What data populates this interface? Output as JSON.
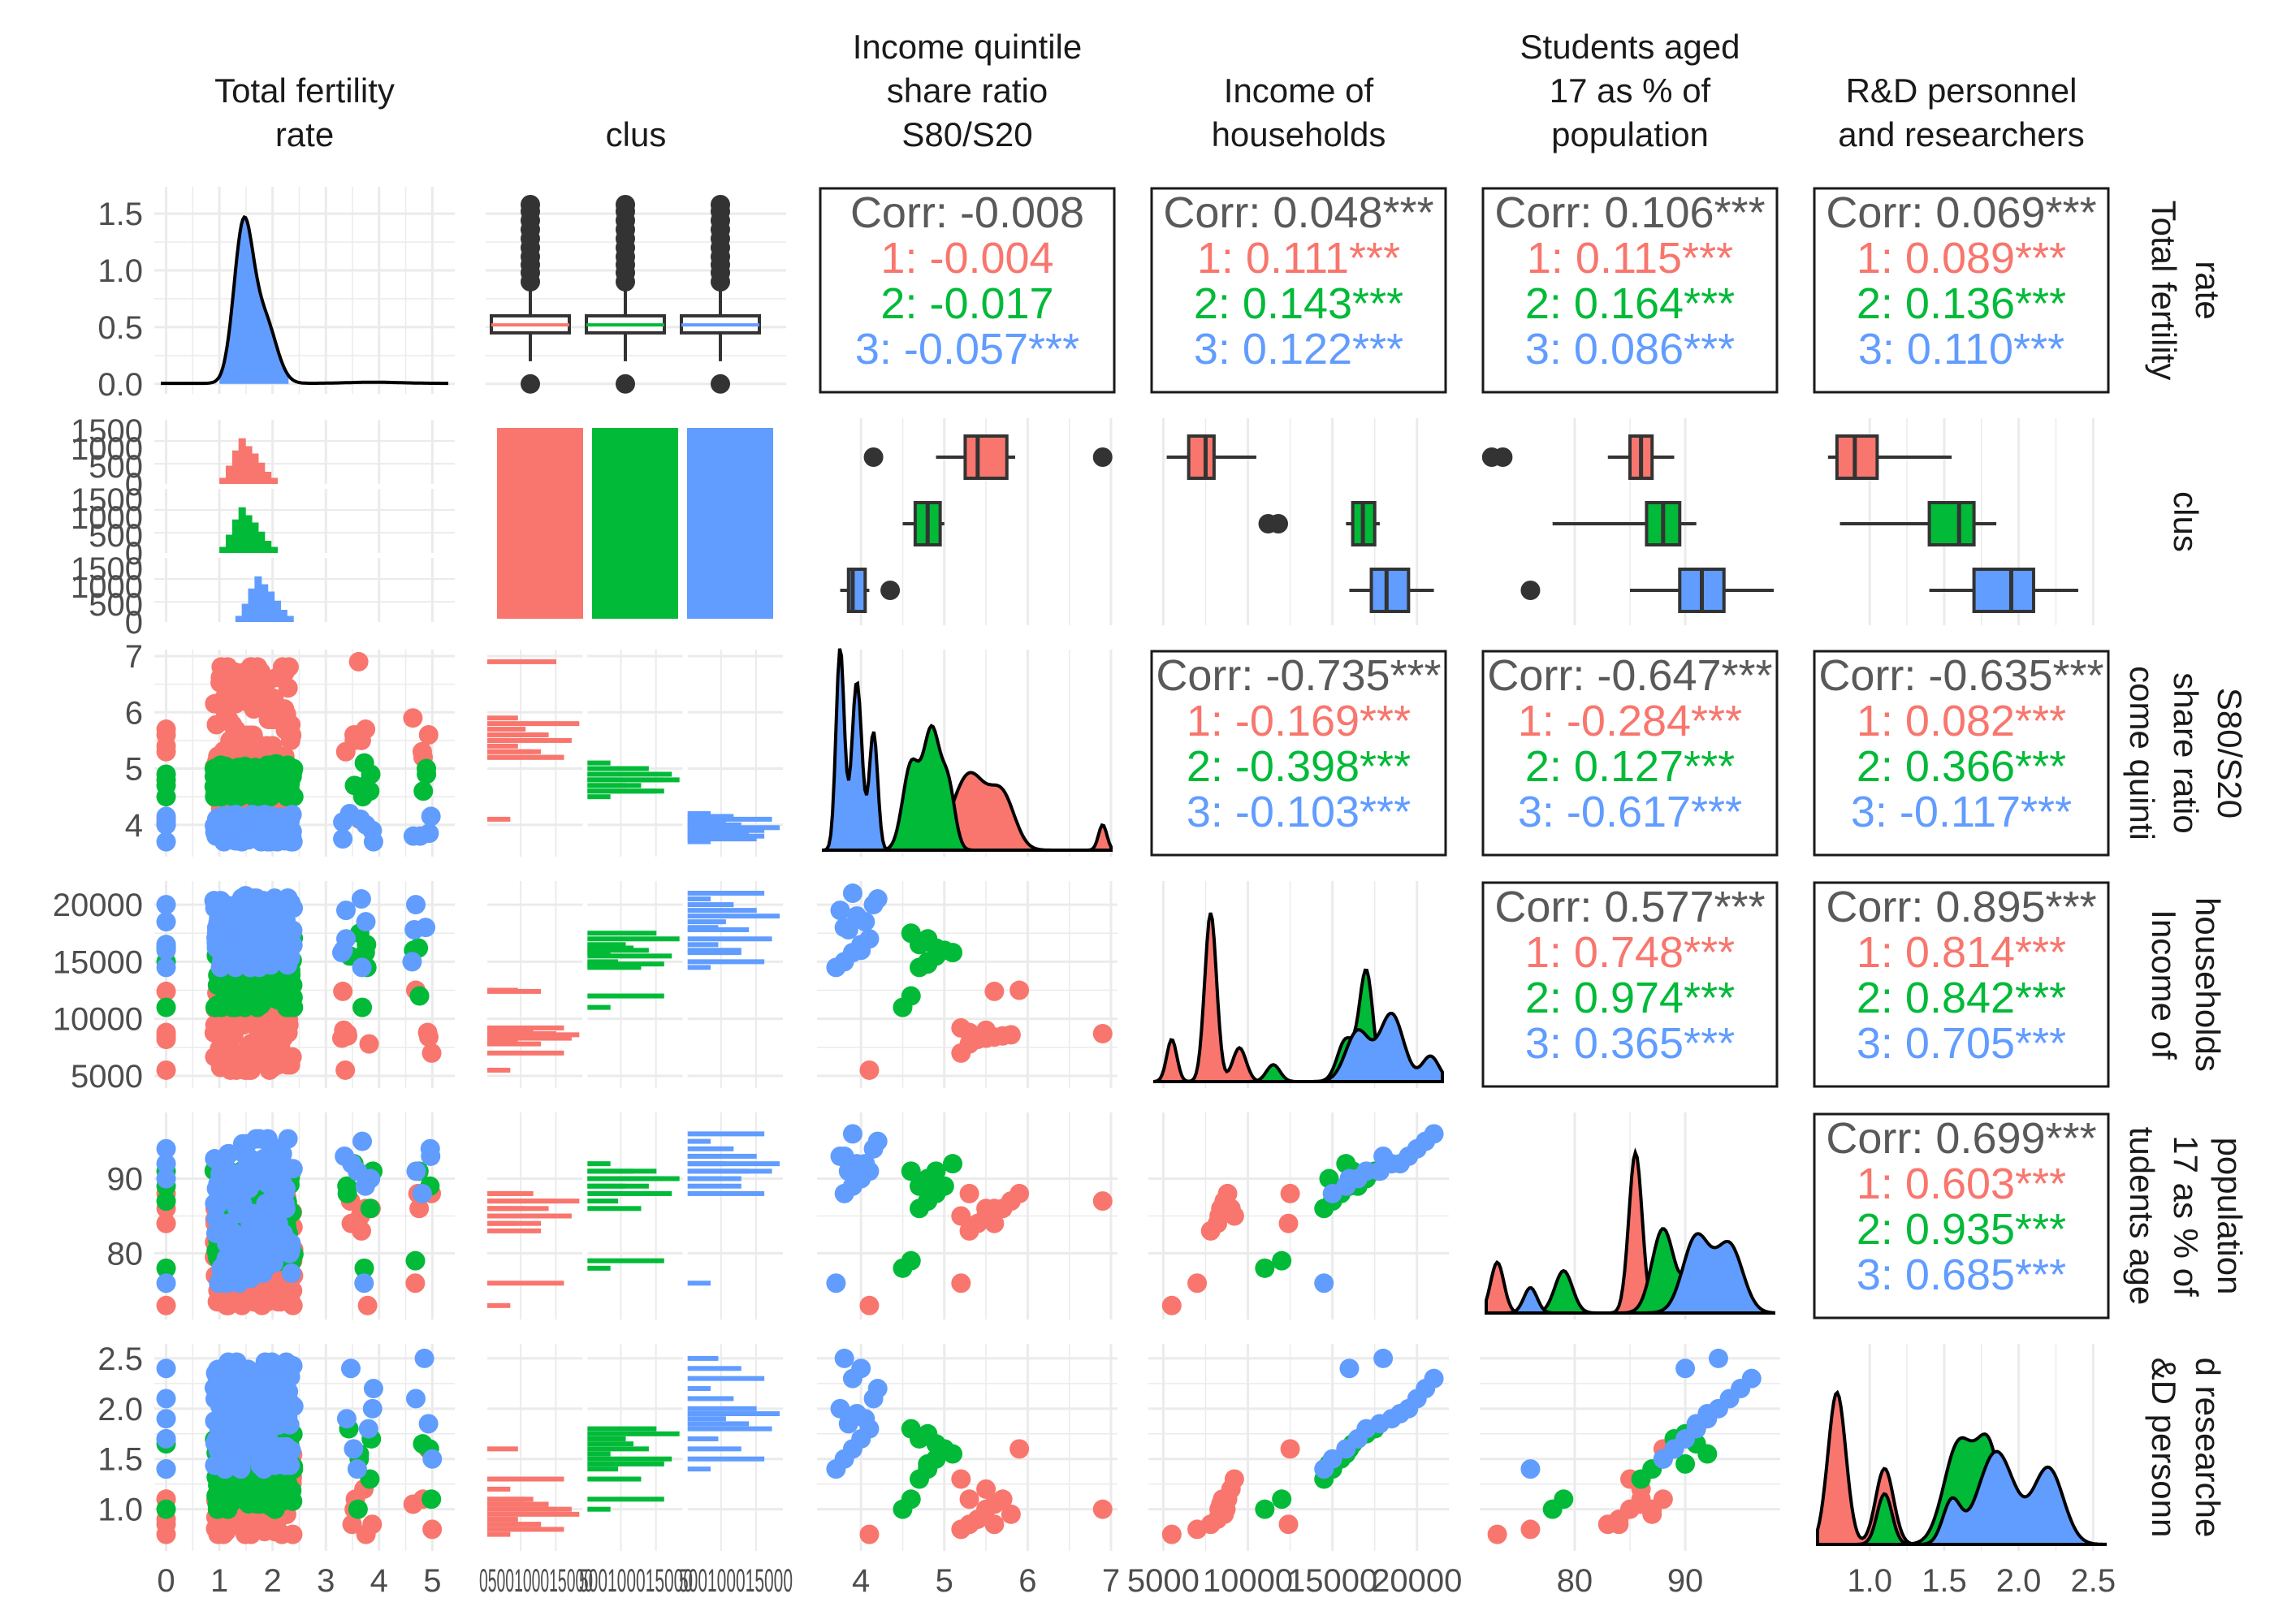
{
  "chart_data": {
    "type": "scatter-matrix",
    "variables": [
      "Total fertility rate",
      "clus",
      "Income quintile share ratio S80/S20",
      "Income of households",
      "Students aged 17 as % of population",
      "R&D personnel and researchers"
    ],
    "column_headers": [
      [
        "Total fertility",
        "rate"
      ],
      [
        "clus"
      ],
      [
        "Income quintile",
        "share ratio",
        "S80/S20"
      ],
      [
        "Income of",
        "households"
      ],
      [
        "Students aged",
        "17 as % of",
        "population"
      ],
      [
        "R&D personnel",
        "and researchers"
      ]
    ],
    "row_strips": [
      [
        "Total fertility",
        "rate"
      ],
      [
        "clus"
      ],
      [
        "come quinti",
        "share ratio",
        "S80/S20"
      ],
      [
        "Income of",
        "households"
      ],
      [
        "tudents age",
        "17 as % of",
        "population"
      ],
      [
        "&D personn",
        "d researche"
      ]
    ],
    "clusters": [
      "1",
      "2",
      "3"
    ],
    "colors": {
      "1": "#F8766D",
      "2": "#00BA38",
      "3": "#619CFF",
      "overall": "#595959",
      "grid": "#EBEBEB"
    },
    "axes": {
      "tfr": {
        "range": [
          -0.1,
          5.3
        ],
        "ticks": [
          "0",
          "1",
          "2",
          "3",
          "4",
          "5"
        ],
        "tickvals": [
          0,
          1,
          2,
          3,
          4,
          5
        ]
      },
      "tfr_density_y": {
        "range": [
          -0.03,
          1.68
        ],
        "ticks": [
          "0.0",
          "0.5",
          "1.0",
          "1.5"
        ],
        "tickvals": [
          0,
          0.5,
          1,
          1.5
        ]
      },
      "clus_x_labels": [
        "0500100015000",
        "500100015000",
        "500100015000"
      ],
      "clus_y_labels": [
        "1500",
        "1000",
        "500",
        "0"
      ],
      "s80": {
        "range": [
          3.55,
          7.0
        ],
        "ticks": [
          "4",
          "5",
          "6",
          "7"
        ],
        "tickvals": [
          4,
          5,
          6,
          7
        ]
      },
      "income": {
        "range": [
          4500,
          21500
        ],
        "ticks": [
          "5000",
          "10000",
          "15000",
          "20000"
        ],
        "tickvals": [
          5000,
          10000,
          15000,
          20000
        ]
      },
      "students": {
        "range": [
          72,
          98
        ],
        "ticks": [
          "80",
          "90"
        ],
        "tickvals": [
          80,
          90
        ]
      },
      "rd": {
        "range": [
          0.65,
          2.58
        ],
        "ticks": [
          "1.0",
          "1.5",
          "2.0",
          "2.5"
        ],
        "tickvals": [
          1,
          1.5,
          2,
          2.5
        ]
      }
    },
    "correlations": [
      {
        "row": 0,
        "col": 2,
        "overall": "Corr: -0.008",
        "c1": "1: -0.004",
        "c2": "2: -0.017",
        "c3": "3: -0.057***"
      },
      {
        "row": 0,
        "col": 3,
        "overall": "Corr: 0.048***",
        "c1": "1: 0.111***",
        "c2": "2: 0.143***",
        "c3": "3: 0.122***"
      },
      {
        "row": 0,
        "col": 4,
        "overall": "Corr: 0.106***",
        "c1": "1: 0.115***",
        "c2": "2: 0.164***",
        "c3": "3: 0.086***"
      },
      {
        "row": 0,
        "col": 5,
        "overall": "Corr: 0.069***",
        "c1": "1: 0.089***",
        "c2": "2: 0.136***",
        "c3": "3: 0.110***"
      },
      {
        "row": 2,
        "col": 3,
        "overall": "Corr: -0.735***",
        "c1": "1: -0.169***",
        "c2": "2: -0.398***",
        "c3": "3: -0.103***"
      },
      {
        "row": 2,
        "col": 4,
        "overall": "Corr: -0.647***",
        "c1": "1: -0.284***",
        "c2": "2: 0.127***",
        "c3": "3: -0.617***"
      },
      {
        "row": 2,
        "col": 5,
        "overall": "Corr: -0.635***",
        "c1": "1: 0.082***",
        "c2": "2: 0.366***",
        "c3": "3: -0.117***"
      },
      {
        "row": 3,
        "col": 4,
        "overall": "Corr: 0.577***",
        "c1": "1: 0.748***",
        "c2": "2: 0.974***",
        "c3": "3: 0.365***"
      },
      {
        "row": 3,
        "col": 5,
        "overall": "Corr: 0.895***",
        "c1": "1: 0.814***",
        "c2": "2: 0.842***",
        "c3": "3: 0.705***"
      },
      {
        "row": 4,
        "col": 5,
        "overall": "Corr: 0.699***",
        "c1": "1: 0.603***",
        "c2": "2: 0.935***",
        "c3": "3: 0.685***"
      }
    ],
    "cluster_counts": {
      "1": 1500,
      "2": 1500,
      "3": 1500
    },
    "region_points": {
      "1": {
        "s80": [
          4.1,
          5.2,
          5.3,
          5.4,
          5.5,
          5.6,
          5.7,
          5.8,
          6.9,
          5.3,
          5.5,
          5.2,
          5.6,
          5.9
        ],
        "income": [
          5500,
          7000,
          7800,
          8200,
          8300,
          8400,
          8500,
          8600,
          8700,
          8800,
          9000,
          9200,
          12400,
          12500
        ],
        "students": [
          73,
          76,
          83,
          84,
          85,
          86,
          86,
          87,
          87,
          88,
          86,
          85,
          84,
          88
        ],
        "rd": [
          0.75,
          0.8,
          0.85,
          0.9,
          1.0,
          1.05,
          1.1,
          0.95,
          1.0,
          1.1,
          1.2,
          1.3,
          0.85,
          1.6
        ]
      },
      "2": {
        "s80": [
          4.5,
          4.6,
          4.7,
          4.8,
          4.9,
          5.0,
          4.7,
          4.8,
          4.6,
          4.9,
          5.1,
          4.8
        ],
        "income": [
          11000,
          12000,
          14500,
          15000,
          15500,
          16000,
          16500,
          17000,
          17500,
          16200,
          15800,
          14800
        ],
        "students": [
          78,
          79,
          86,
          87,
          88,
          89,
          89,
          90,
          91,
          91,
          92,
          90
        ],
        "rd": [
          1.0,
          1.1,
          1.3,
          1.4,
          1.5,
          1.6,
          1.7,
          1.75,
          1.8,
          1.65,
          1.55,
          1.45
        ]
      },
      "3": {
        "s80": [
          3.7,
          3.8,
          3.9,
          4.0,
          4.1,
          3.85,
          4.05,
          3.95,
          3.75,
          4.15,
          4.2,
          3.9,
          4.0,
          3.8
        ],
        "income": [
          14500,
          15000,
          15800,
          16500,
          17000,
          17800,
          18500,
          19000,
          19500,
          20000,
          20500,
          21000,
          16000,
          18000
        ],
        "students": [
          76,
          88,
          89,
          90,
          91,
          91,
          92,
          92,
          93,
          94,
          95,
          96,
          90,
          93
        ],
        "rd": [
          1.4,
          1.5,
          1.6,
          1.7,
          1.8,
          1.85,
          1.9,
          1.95,
          2.0,
          2.1,
          2.2,
          2.3,
          2.4,
          2.5
        ]
      }
    }
  }
}
